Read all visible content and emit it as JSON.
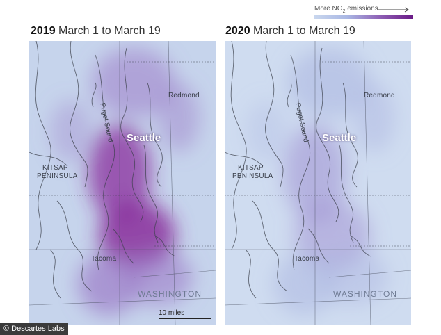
{
  "legend": {
    "label_prefix": "More NO",
    "label_sub": "2",
    "label_suffix": " emissions",
    "gradient": [
      "#c9d7ee",
      "#a9b7e4",
      "#8e5fb5",
      "#6a1a86"
    ]
  },
  "panels": [
    {
      "year": "2019",
      "range": "March 1 to March 19",
      "labels": {
        "redmond": "Redmond",
        "seattle": "Seattle",
        "puget_sound": "Puget Sound",
        "kitsap_1": "KITSAP",
        "kitsap_2": "PENINSULA",
        "tacoma": "Tacoma",
        "washington": "WASHINGTON"
      },
      "scale_label": "10 miles",
      "emission_level": "high",
      "colors": {
        "base": "#c6d4ec",
        "mid": "#9c7cc8",
        "high": "#8a2f9c"
      }
    },
    {
      "year": "2020",
      "range": "March 1 to March 19",
      "labels": {
        "redmond": "Redmond",
        "seattle": "Seattle",
        "puget_sound": "Puget Sound",
        "kitsap_1": "KITSAP",
        "kitsap_2": "PENINSULA",
        "tacoma": "Tacoma",
        "washington": "WASHINGTON"
      },
      "emission_level": "low",
      "colors": {
        "base": "#cfdcf0",
        "mid": "#aab4e0",
        "high": "#9f8fd2"
      }
    }
  ],
  "credit": "© Descartes Labs"
}
